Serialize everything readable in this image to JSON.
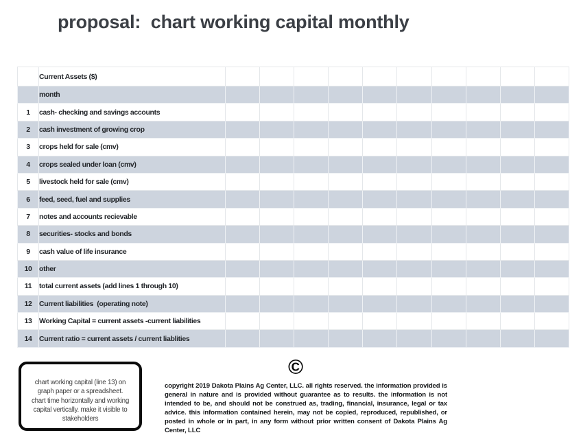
{
  "page": {
    "title": "proposal:  chart working capital monthly"
  },
  "table": {
    "header_label": "Current Assets ($)",
    "subheader_label": "month",
    "value_columns": 10,
    "rows": [
      {
        "line": "1",
        "label": "cash- checking and savings accounts"
      },
      {
        "line": "2",
        "label": "cash investment of growing crop"
      },
      {
        "line": "3",
        "label": "crops held for sale (cmv)"
      },
      {
        "line": "4",
        "label": "crops sealed under loan (cmv)"
      },
      {
        "line": "5",
        "label": "livestock held for sale (cmv)"
      },
      {
        "line": "6",
        "label": "feed, seed, fuel and supplies"
      },
      {
        "line": "7",
        "label": "notes and accounts recievable"
      },
      {
        "line": "8",
        "label": "securities- stocks and bonds"
      },
      {
        "line": "9",
        "label": "cash value of life insurance"
      },
      {
        "line": "10",
        "label": "other"
      },
      {
        "line": "11",
        "label": "total current assets (add lines 1 through 10)"
      },
      {
        "line": "12",
        "label": "Current liabilities  (operating note)"
      },
      {
        "line": "13",
        "label": "Working Capital = current assets -current liabilities"
      },
      {
        "line": "14",
        "label": "Current ratio = current assets / current liablities"
      }
    ]
  },
  "note_box": {
    "text": "chart working capital (line 13) on\ngraph paper or a spreadsheet.\nchart time horizontally and working\ncapital vertically.  make it visible to\nstakeholders"
  },
  "footer": {
    "copyright_symbol": "©",
    "copyright_text": "copyright 2019 Dakota Plains Ag Center, LLC. all rights reserved. the information provided is general in nature and is provided without guarantee as to results. the information is not intended to be, and should not be construed as, trading, financial, insurance, legal or tax advice. this information contained herein, may not be copied, reproduced, republished, or posted in whole or in part, in any form without prior written consent of Dakota Plains Ag Center, LLC"
  },
  "colors": {
    "row_shade": "#cdd4de",
    "grid_line": "#e4e7ea",
    "title_text": "#3b3f45",
    "body_text": "#23262a",
    "note_border": "#0b0b0b"
  }
}
